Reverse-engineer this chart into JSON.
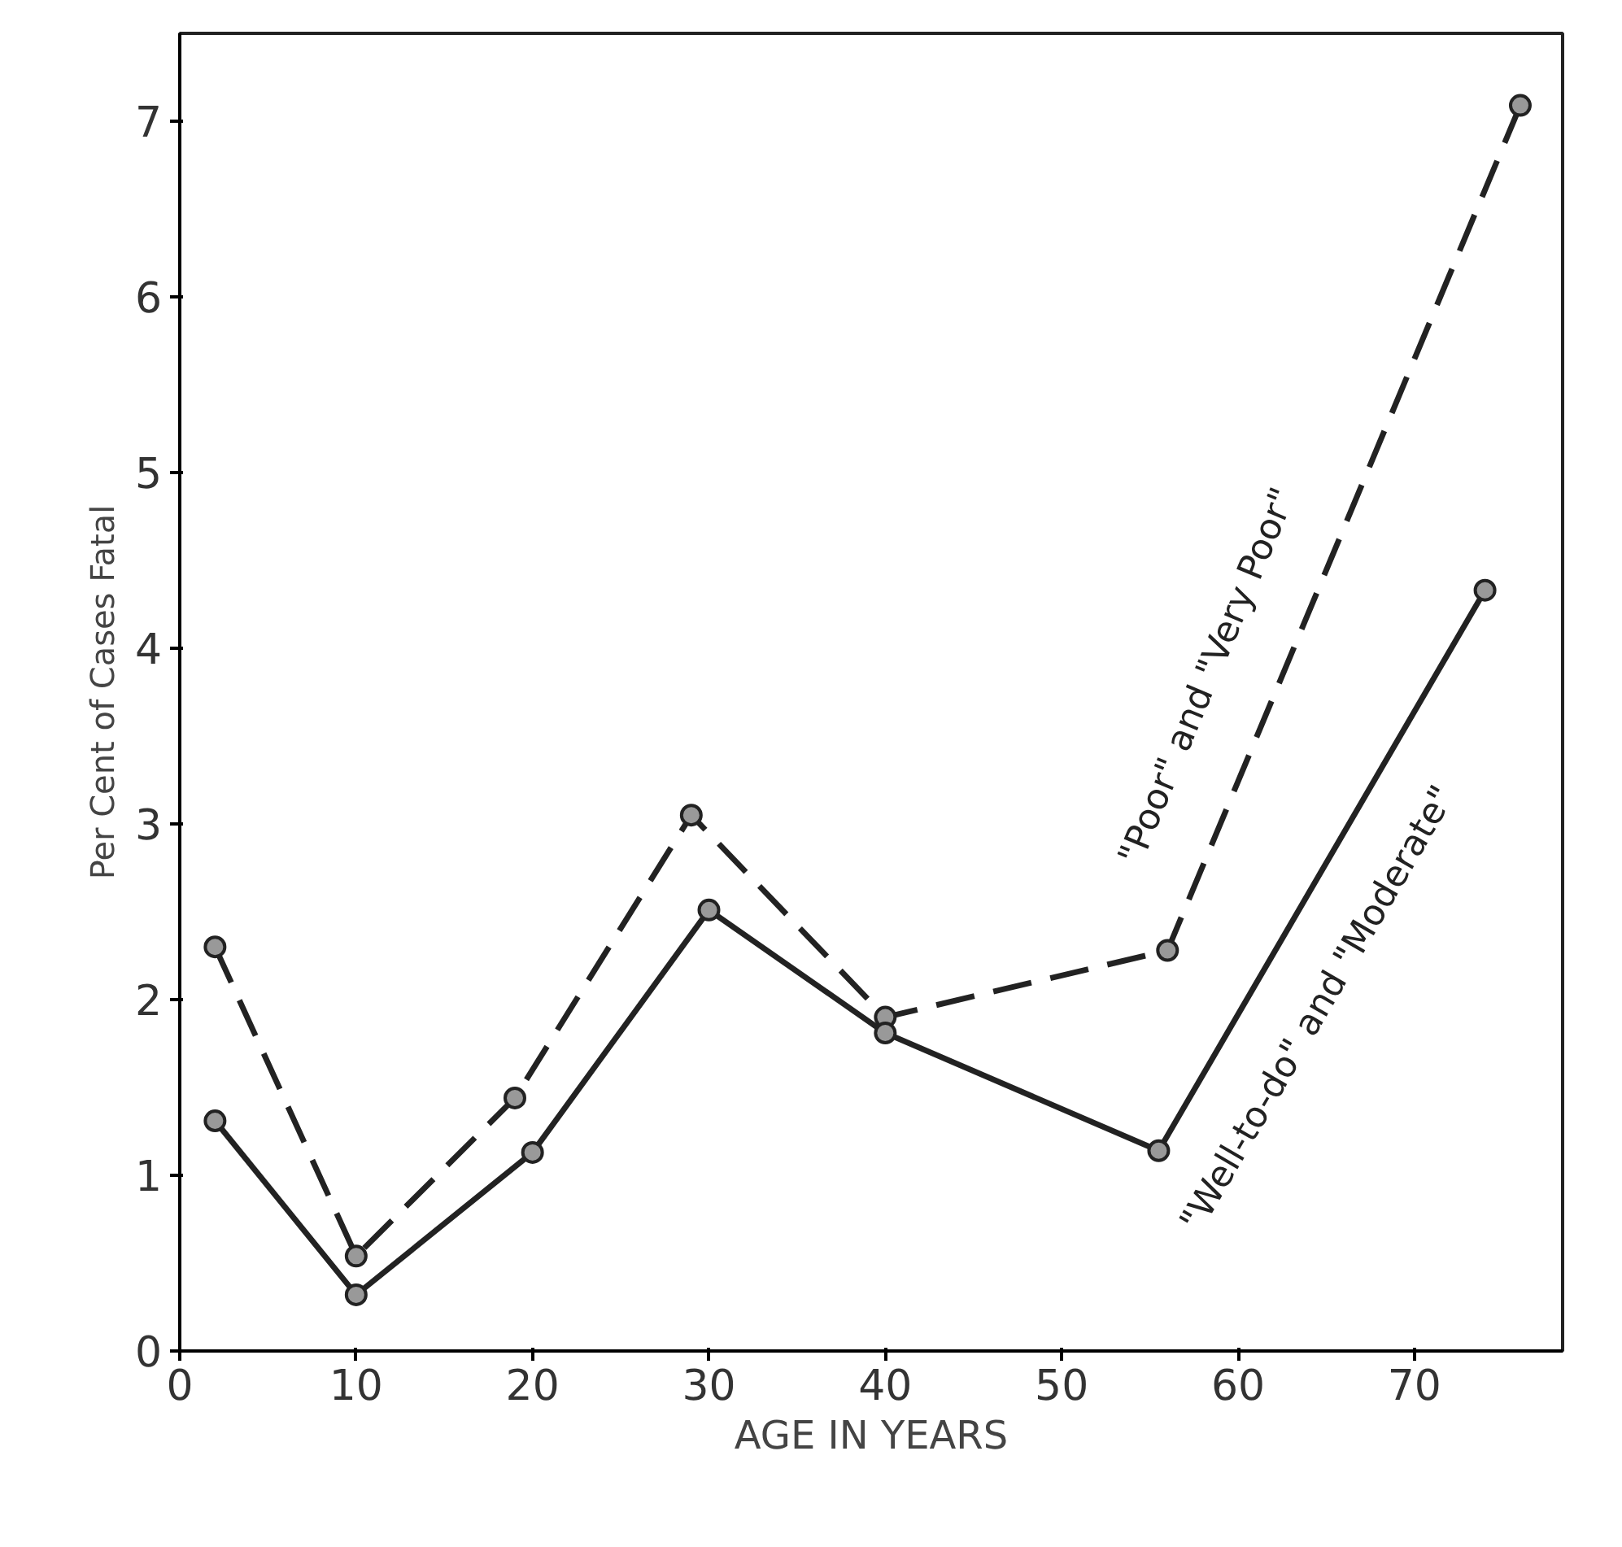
{
  "chart_data": {
    "type": "line",
    "xlabel": "AGE IN YEARS",
    "ylabel": "Per Cent of Cases Fatal",
    "xlim": [
      0,
      78.4
    ],
    "ylim": [
      0,
      7.5
    ],
    "xticks": [
      0,
      10,
      20,
      30,
      40,
      50,
      60,
      70
    ],
    "yticks": [
      0,
      1,
      2,
      3,
      4,
      5,
      6,
      7
    ],
    "grid": false,
    "marker": "circle",
    "series": [
      {
        "name": "\"Poor\" and \"Very Poor\"",
        "color": "#222222",
        "line_style": "dashed",
        "x": [
          2,
          10,
          19,
          29,
          40,
          56,
          76
        ],
        "values": [
          2.3,
          0.54,
          1.44,
          3.05,
          1.9,
          2.28,
          7.09
        ]
      },
      {
        "name": "\"Well-to-do\" and \"Moderate\"",
        "color": "#222222",
        "line_style": "solid",
        "x": [
          2,
          10,
          20,
          30,
          40,
          55.5,
          74
        ],
        "values": [
          1.31,
          0.32,
          1.13,
          2.51,
          1.81,
          1.14,
          4.33
        ]
      }
    ]
  }
}
